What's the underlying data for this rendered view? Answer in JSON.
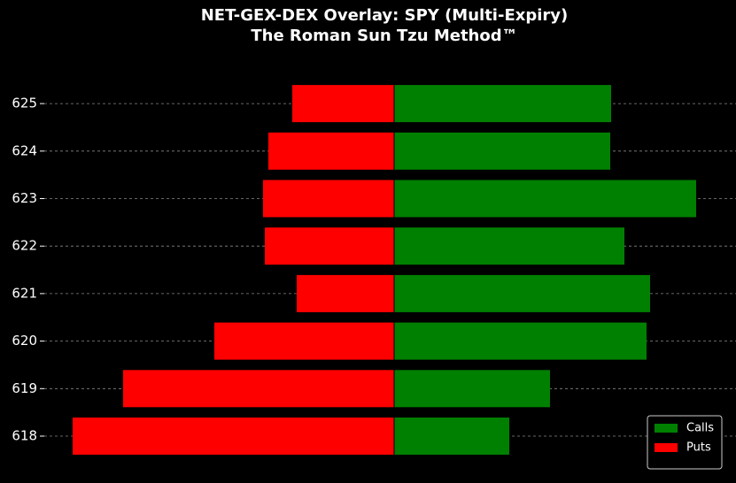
{
  "chart_data": {
    "type": "hbar",
    "title": "NET-GEX-DEX Overlay: SPY (Multi-Expiry)",
    "subtitle": "The Roman Sun Tzu Method™",
    "categories": [
      "618",
      "619",
      "620",
      "621",
      "622",
      "623",
      "624",
      "625"
    ],
    "series": [
      {
        "name": "Calls",
        "color": "#008000",
        "values": [
          130,
          176,
          285,
          289,
          260,
          341,
          244,
          245
        ]
      },
      {
        "name": "Puts",
        "color": "#ff0000",
        "values": [
          -363,
          -306,
          -203,
          -110,
          -146,
          -148,
          -142,
          -115
        ]
      }
    ],
    "xlim": [
      -395,
      386
    ],
    "grid": true,
    "legend": "lower right"
  }
}
